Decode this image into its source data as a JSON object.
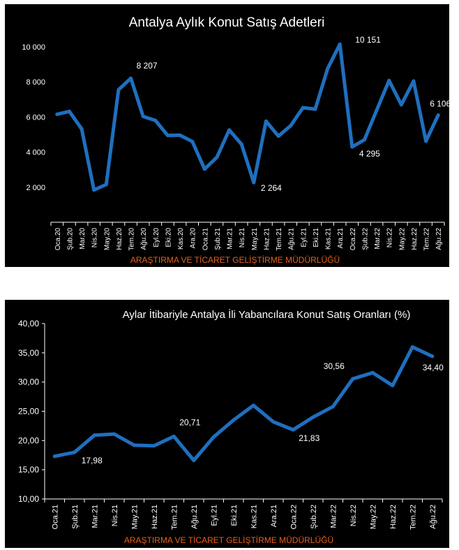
{
  "chart_data": [
    {
      "type": "line",
      "title": "Antalya Aylık Konut Satış Adetleri",
      "footer": "ARAŞTIRMA VE TİCARET GELİŞTİRME MÜDÜRLÜĞÜ",
      "ylim": [
        0,
        10000
      ],
      "yticks": [
        {
          "v": 2000,
          "label": "2 000"
        },
        {
          "v": 4000,
          "label": "4 000"
        },
        {
          "v": 6000,
          "label": "6 000"
        },
        {
          "v": 8000,
          "label": "8 000"
        },
        {
          "v": 10000,
          "label": "10 000"
        }
      ],
      "categories": [
        "Oca.20",
        "Şub.20",
        "Mar.20",
        "Nis.20",
        "May.20",
        "Haz.20",
        "Tem.20",
        "Ağu.20",
        "Eyl.20",
        "Eki.20",
        "Kas.20",
        "Ara.20",
        "Oca.21",
        "Şub.21",
        "Mar.21",
        "Nis.21",
        "May.21",
        "Haz.21",
        "Tem.21",
        "Ağu.21",
        "Eyl.21",
        "Eki.21",
        "Kas.21",
        "Ara.21",
        "Oca.22",
        "Şub.22",
        "Mar.22",
        "Nis.22",
        "May.22",
        "Haz.22",
        "Tem.22",
        "Ağu.22"
      ],
      "values": [
        6150,
        6320,
        5320,
        1840,
        2150,
        7550,
        8207,
        6030,
        5800,
        4950,
        4960,
        4600,
        3030,
        3700,
        5260,
        4450,
        2264,
        5760,
        4910,
        5500,
        6530,
        6450,
        8750,
        10151,
        4295,
        4700,
        6400,
        8080,
        6700,
        8050,
        4620,
        6106
      ],
      "color": "#1f6fbf",
      "data_labels": [
        {
          "index": 6,
          "text": "8 207"
        },
        {
          "index": 16,
          "text": "2 264"
        },
        {
          "index": 23,
          "text": "10 151"
        },
        {
          "index": 24,
          "text": "4 295"
        },
        {
          "index": 31,
          "text": "6 106"
        }
      ],
      "grid": false
    },
    {
      "type": "line",
      "title": "Aylar İtibariyle Antalya İli Yabancılara Konut Satış Oranları (%)",
      "footer": "ARAŞTIRMA VE TİCARET GELİŞTİRME MÜDÜRLÜĞÜ",
      "ylim": [
        10,
        40
      ],
      "yticks": [
        {
          "v": 10,
          "label": "10,00"
        },
        {
          "v": 15,
          "label": "15,00"
        },
        {
          "v": 20,
          "label": "20,00"
        },
        {
          "v": 25,
          "label": "25,00"
        },
        {
          "v": 30,
          "label": "30,00"
        },
        {
          "v": 35,
          "label": "35,00"
        },
        {
          "v": 40,
          "label": "40,00"
        }
      ],
      "categories": [
        "Oca.21",
        "Şub.21",
        "Mar.21",
        "Nis.21",
        "May.21",
        "Haz.21",
        "Tem.21",
        "Ağu.21",
        "Eyl.21",
        "Eki.21",
        "Kas.21",
        "Ara.21",
        "Oca.22",
        "Şub.22",
        "Mar.22",
        "Nis.22",
        "May.22",
        "Haz.22",
        "Tem.22",
        "Ağu.22"
      ],
      "values": [
        17.3,
        17.98,
        20.9,
        21.1,
        19.2,
        19.1,
        20.71,
        16.6,
        20.6,
        23.5,
        26.0,
        23.2,
        21.83,
        24.0,
        25.8,
        30.56,
        31.6,
        29.4,
        36.0,
        34.4
      ],
      "color": "#1f6fbf",
      "data_labels": [
        {
          "index": 1,
          "text": "17,98"
        },
        {
          "index": 6,
          "text": "20,71"
        },
        {
          "index": 12,
          "text": "21,83"
        },
        {
          "index": 15,
          "text": "30,56"
        },
        {
          "index": 19,
          "text": "34,40"
        }
      ],
      "grid": false
    }
  ]
}
